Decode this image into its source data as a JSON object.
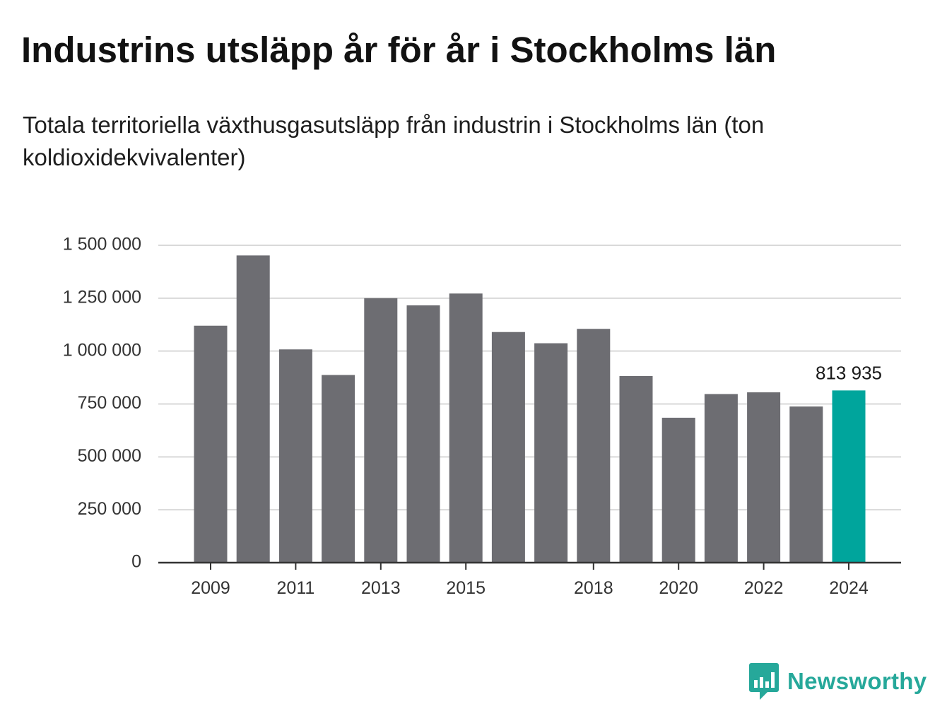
{
  "header": {
    "title": "Industrins utsläpp år för år i Stockholms län",
    "subtitle": "Totala territoriella växthusgasutsläpp från industrin i Stockholms län (ton koldioxidekvivalenter)"
  },
  "brand": {
    "name": "Newsworthy",
    "icon": "newsworthy-logo-icon",
    "color": "#26a89a"
  },
  "colors": {
    "bar": "#6d6d72",
    "highlight": "#00a59c",
    "grid": "#d9d9d9",
    "axis": "#333333"
  },
  "chart_data": {
    "type": "bar",
    "title": "Industrins utsläpp år för år i Stockholms län",
    "subtitle": "Totala territoriella växthusgasutsläpp från industrin i Stockholms län (ton koldioxidekvivalenter)",
    "categories": [
      "2009",
      "2010",
      "2011",
      "2012",
      "2013",
      "2014",
      "2015",
      "2016",
      "2017",
      "2018",
      "2019",
      "2020",
      "2021",
      "2022",
      "2023",
      "2024"
    ],
    "values": [
      1120000,
      1452000,
      1008000,
      887000,
      1250000,
      1216000,
      1272000,
      1090000,
      1037000,
      1105000,
      882000,
      685000,
      797000,
      805000,
      738000,
      813935
    ],
    "x_tick_labels": [
      "2009",
      "2011",
      "2013",
      "2015",
      "2018",
      "2020",
      "2022",
      "2024"
    ],
    "y_ticks": [
      0,
      250000,
      500000,
      750000,
      1000000,
      1250000,
      1500000
    ],
    "y_tick_labels": [
      "0",
      "250 000",
      "500 000",
      "750 000",
      "1 000 000",
      "1 250 000",
      "1 500 000"
    ],
    "ylim": [
      0,
      1500000
    ],
    "grid": true,
    "highlight_category": "2024",
    "highlight_label": "813 935",
    "xlabel": "",
    "ylabel": ""
  }
}
